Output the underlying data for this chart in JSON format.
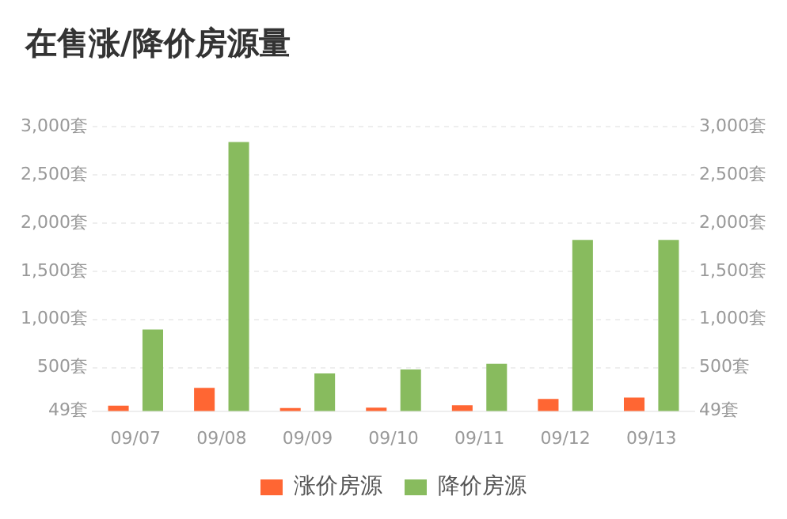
{
  "chart_data": {
    "type": "bar",
    "title": "在售涨/降价房源量",
    "categories": [
      "09/07",
      "09/08",
      "09/09",
      "09/10",
      "09/11",
      "09/12",
      "09/13"
    ],
    "series": [
      {
        "name": "涨价房源",
        "color": "#ff6633",
        "values": [
          105,
          290,
          80,
          84,
          110,
          175,
          190
        ]
      },
      {
        "name": "降价房源",
        "color": "#88bb5e",
        "values": [
          895,
          2840,
          440,
          480,
          540,
          1825,
          1825
        ]
      }
    ],
    "ylim": [
      49,
      3000
    ],
    "yticks": [
      {
        "value": 49,
        "label": "49套"
      },
      {
        "value": 500,
        "label": "500套"
      },
      {
        "value": 1000,
        "label": "1,000套"
      },
      {
        "value": 1500,
        "label": "1,500套"
      },
      {
        "value": 2000,
        "label": "2,000套"
      },
      {
        "value": 2500,
        "label": "2,500套"
      },
      {
        "value": 3000,
        "label": "3,000套"
      }
    ],
    "y2lim": [
      49,
      3000
    ],
    "y2ticks": [
      {
        "value": 49,
        "label": "49套"
      },
      {
        "value": 500,
        "label": "500套"
      },
      {
        "value": 1000,
        "label": "1,000套"
      },
      {
        "value": 1500,
        "label": "1,500套"
      },
      {
        "value": 2000,
        "label": "2,000套"
      },
      {
        "value": 2500,
        "label": "2,500套"
      },
      {
        "value": 3000,
        "label": "3,000套"
      }
    ],
    "grid": "y",
    "legend": "bottom"
  }
}
